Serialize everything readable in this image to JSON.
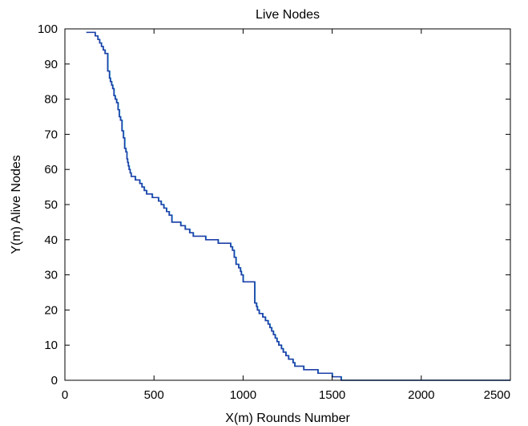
{
  "chart_data": {
    "type": "line",
    "title": "Live Nodes",
    "xlabel": "X(m) Rounds Number",
    "ylabel": "Y(m) Alive Nodes",
    "xlim": [
      0,
      2500
    ],
    "ylim": [
      0,
      100
    ],
    "xticks": [
      0,
      500,
      1000,
      1500,
      2000,
      2500
    ],
    "yticks": [
      0,
      10,
      20,
      30,
      40,
      50,
      60,
      70,
      80,
      90,
      100
    ],
    "grid": false,
    "colors": {
      "primary": "#1f3fa8",
      "secondary": "#2ab8d8"
    },
    "series": [
      {
        "color": "#1f3fa8",
        "step": true,
        "x": [
          120,
          170,
          185,
          195,
          205,
          215,
          225,
          240,
          250,
          255,
          262,
          268,
          275,
          282,
          290,
          298,
          305,
          312,
          320,
          328,
          335,
          342,
          348,
          352,
          356,
          360,
          366,
          372,
          378,
          385,
          395,
          410,
          420,
          432,
          445,
          458,
          470,
          490,
          510,
          525,
          540,
          555,
          570,
          585,
          600,
          620,
          650,
          675,
          700,
          720,
          760,
          790,
          830,
          860,
          870,
          930,
          940,
          950,
          960,
          975,
          985,
          990,
          1000,
          1020,
          1035,
          1050,
          1065,
          1075,
          1080,
          1090,
          1110,
          1125,
          1140,
          1150,
          1160,
          1170,
          1180,
          1190,
          1200,
          1215,
          1225,
          1240,
          1255,
          1265,
          1280,
          1290,
          1300,
          1320,
          1340,
          1360,
          1390,
          1420,
          1460,
          1500,
          1520,
          1550,
          1570,
          2500
        ],
        "y": [
          99,
          98,
          97,
          96,
          95,
          94,
          93,
          88,
          86,
          85,
          84,
          83,
          81,
          80,
          79,
          77,
          75,
          74,
          71,
          69,
          66,
          65,
          63,
          62,
          61,
          60,
          59,
          58,
          58,
          58,
          57,
          57,
          56,
          55,
          54,
          53,
          53,
          52,
          52,
          51,
          50,
          49,
          48,
          47,
          45,
          45,
          44,
          43,
          42,
          41,
          41,
          40,
          40,
          39,
          39,
          38,
          37,
          35,
          33,
          32,
          31,
          30,
          28,
          28,
          28,
          28,
          22,
          21,
          20,
          19,
          18,
          17,
          16,
          15,
          14,
          13,
          12,
          11,
          10,
          9,
          8,
          7,
          6,
          6,
          5,
          4,
          4,
          4,
          3,
          3,
          3,
          2,
          2,
          1,
          1,
          0,
          0,
          0
        ]
      },
      {
        "color": "#2ab8d8",
        "step": true,
        "x": [
          125,
          172,
          187,
          197,
          207,
          217,
          228,
          243,
          253,
          258,
          265,
          271,
          278,
          285,
          293,
          301,
          308,
          315,
          323,
          331,
          338,
          345,
          350,
          354,
          358,
          363,
          368,
          374,
          380,
          388,
          398,
          413,
          423,
          435,
          448,
          461,
          473,
          493,
          513,
          528,
          543,
          558,
          573,
          588,
          603,
          623,
          653,
          678,
          703,
          723,
          763,
          793,
          833,
          863,
          873,
          933,
          943,
          953,
          963,
          978,
          988,
          993,
          1003,
          1023,
          1038,
          1053,
          1068,
          1078,
          1083,
          1093,
          1113,
          1128,
          1143,
          1153,
          1163,
          1173,
          1183,
          1193,
          1203,
          1218,
          1228,
          1243,
          1258,
          1268,
          1283,
          1293,
          1303,
          1323,
          1343,
          1363,
          1393,
          1423,
          1463,
          1503,
          1523,
          1553,
          1573,
          2500
        ],
        "y": [
          99,
          98,
          97,
          96,
          95,
          94,
          93,
          88,
          86,
          85,
          84,
          83,
          81,
          80,
          79,
          77,
          75,
          74,
          71,
          69,
          66,
          65,
          63,
          62,
          61,
          60,
          59,
          58,
          58,
          58,
          57,
          57,
          56,
          55,
          54,
          53,
          53,
          52,
          52,
          51,
          50,
          49,
          48,
          47,
          45,
          45,
          44,
          43,
          42,
          41,
          41,
          40,
          40,
          39,
          39,
          38,
          37,
          35,
          33,
          32,
          31,
          30,
          28,
          28,
          28,
          28,
          22,
          21,
          20,
          19,
          18,
          17,
          16,
          15,
          14,
          13,
          12,
          11,
          10,
          9,
          8,
          7,
          6,
          6,
          5,
          4,
          4,
          4,
          3,
          3,
          3,
          2,
          2,
          1,
          1,
          0,
          0,
          0
        ]
      }
    ]
  }
}
